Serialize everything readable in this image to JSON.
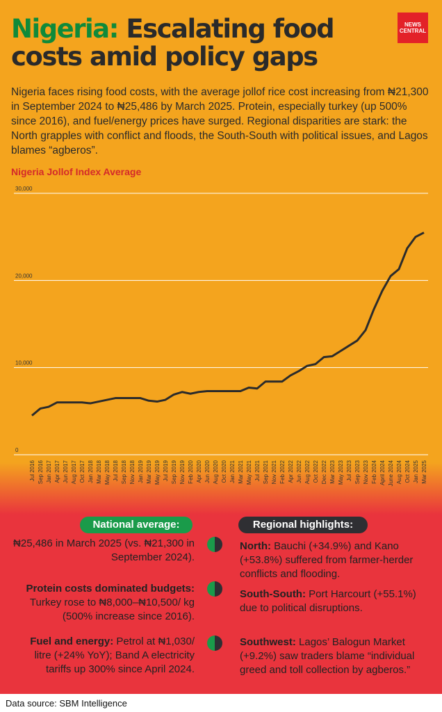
{
  "header": {
    "title_highlight": "Nigeria:",
    "title_rest": "Escalating food costs amid policy gaps",
    "logo": [
      "NEWS",
      "CENTRAL"
    ]
  },
  "intro": "Nigeria faces rising food costs, with the average jollof rice cost increasing from ₦21,300 in September 2024 to ₦25,486 by March 2025. Protein, especially turkey (up 500% since 2016), and fuel/energy prices have surged. Regional disparities are stark: the North grapples with conflict and floods, the South-South with political issues, and Lagos blames “agberos”.",
  "chart_data": {
    "type": "line",
    "title": "Nigeria Jollof Index Average",
    "color": "#2b2b2b",
    "categories": [
      "Jul 2016",
      "Sep 2016",
      "Jan 2017",
      "Apr 2017",
      "Jun 2017",
      "Aug 2017",
      "Oct 2017",
      "Jan 2018",
      "Mar 2018",
      "May 2018",
      "Jul 2018",
      "Sep 2018",
      "Nov 2018",
      "Jan 2019",
      "Mar 2019",
      "May 2019",
      "Jul 2019",
      "Sep 2019",
      "Nov 2019",
      "Feb 2020",
      "Apr 2020",
      "Jun 2020",
      "Aug 2020",
      "Oct 2020",
      "Jan 2021",
      "Mar 2021",
      "May 2021",
      "Jul 2021",
      "Sep 2021",
      "Nov 2021",
      "Feb 2022",
      "Apr 2022",
      "Jun 2022",
      "Aug 2022",
      "Oct 2022",
      "Dec 2022",
      "Mar 2023",
      "May 2023",
      "Jul 2023",
      "Sep 2023",
      "Nov 2023",
      "Feb 2024",
      "April 2024",
      "June 2024",
      "Aug 2024",
      "Oct 2024",
      "Jan 2025",
      "Mar 2025"
    ],
    "values": [
      4500,
      5300,
      5500,
      6000,
      6000,
      6000,
      6000,
      5900,
      6100,
      6300,
      6500,
      6500,
      6500,
      6500,
      6200,
      6100,
      6300,
      6900,
      7200,
      7000,
      7200,
      7300,
      7300,
      7300,
      7300,
      7300,
      7700,
      7600,
      8400,
      8400,
      8400,
      9100,
      9600,
      10200,
      10400,
      11200,
      11300,
      11900,
      12500,
      13100,
      14300,
      16700,
      18800,
      20500,
      21300,
      23700,
      25000,
      25486
    ],
    "ylim": [
      0,
      30000
    ],
    "yticks": [
      0,
      {
        "value": 10000,
        "label": "10,000"
      },
      {
        "value": 20000,
        "label": "20,000"
      },
      {
        "value": 30000,
        "label": "30,000"
      }
    ],
    "grid": true
  },
  "national": {
    "heading": "National average:",
    "items": [
      {
        "text": "₦25,486 in March 2025 (vs. ₦21,300 in September 2024)."
      },
      {
        "lead": "Protein costs dominated budgets:",
        "text": "Turkey rose to ₦8,000–₦10,500/ kg (500% increase since 2016)."
      },
      {
        "lead": "Fuel and energy:",
        "text": "Petrol at ₦1,030/ litre (+24% YoY); Band A electricity tariffs up 300% since April 2024."
      }
    ]
  },
  "regional": {
    "heading": "Regional highlights:",
    "items": [
      {
        "lead": "North:",
        "text": "Bauchi (+34.9%) and Kano (+53.8%) suffered from farmer-herder conflicts and flooding."
      },
      {
        "lead": "South-South:",
        "text": "Port Harcourt (+55.1%) due to political disruptions."
      },
      {
        "lead": "Southwest:",
        "text": "Lagos’ Balogun Market (+9.2%) saw traders blame “individual greed and toll collection by agberos.”"
      }
    ]
  },
  "source": "Data source: SBM Intelligence"
}
